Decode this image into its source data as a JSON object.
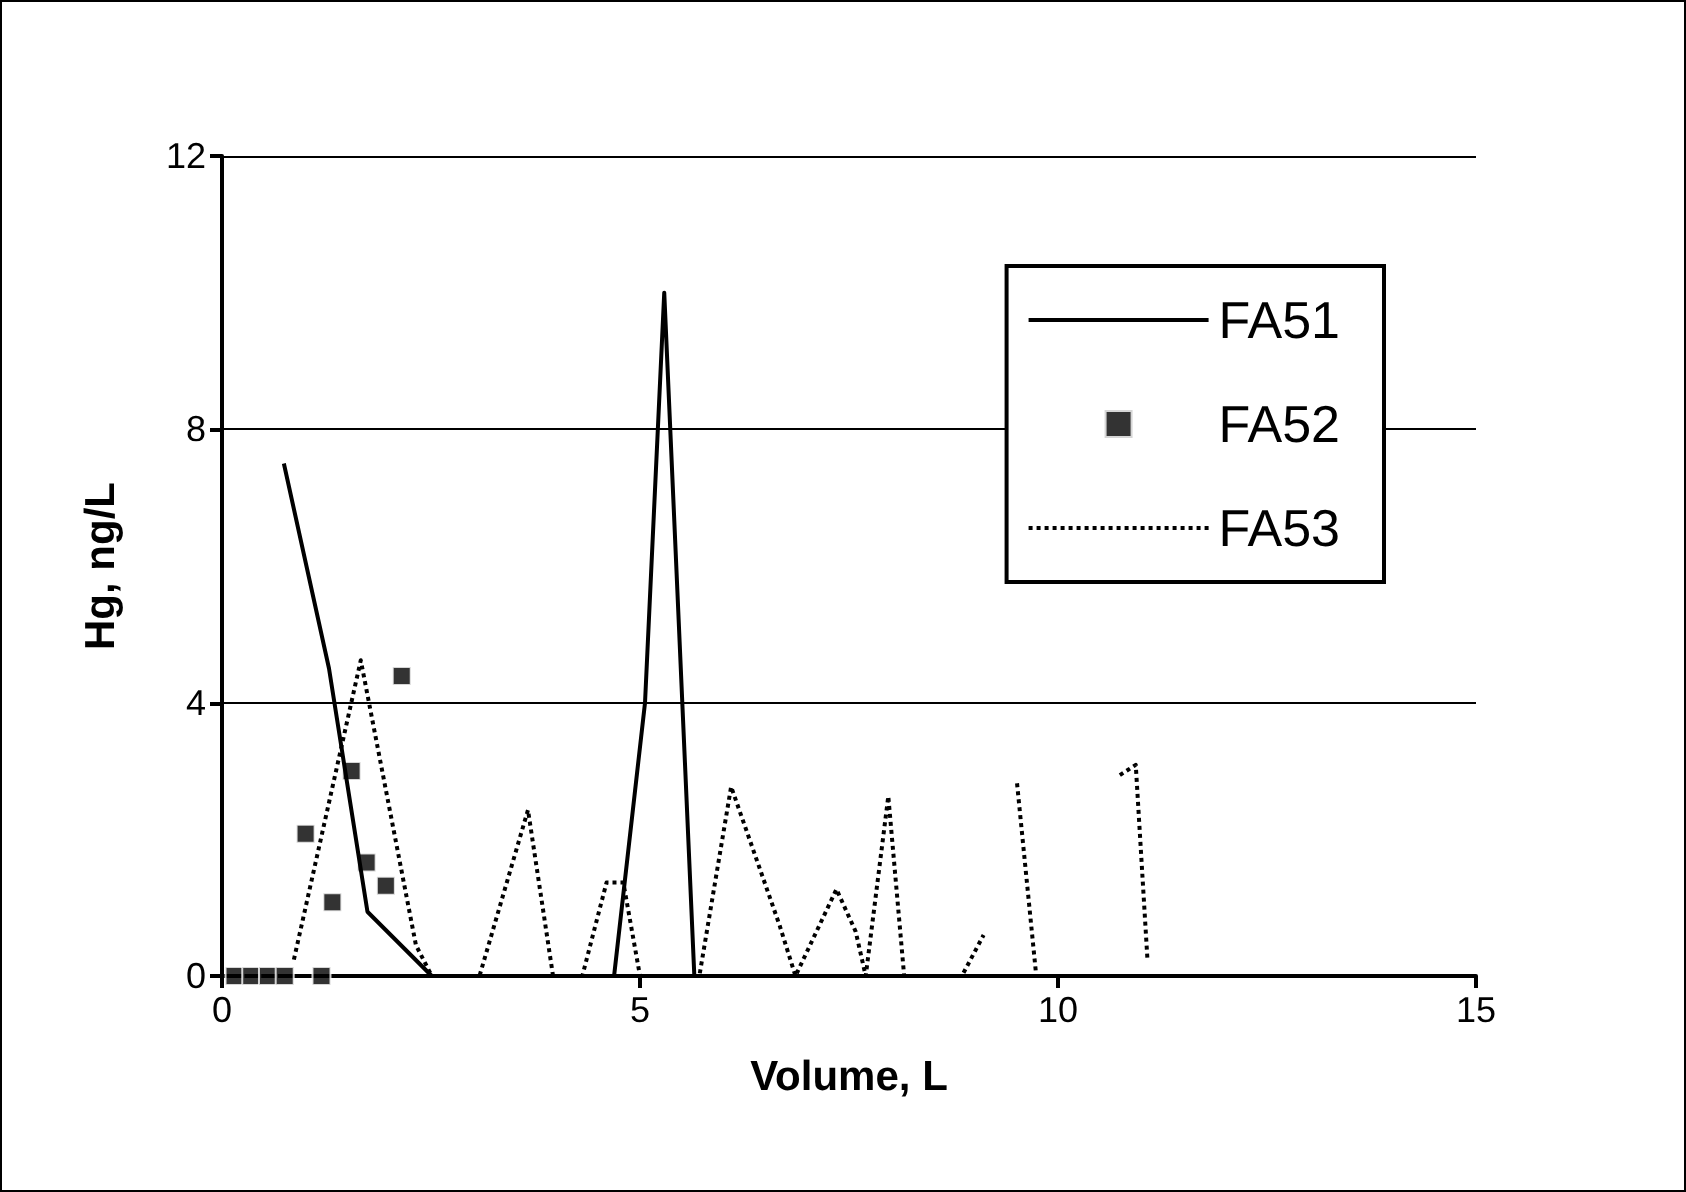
{
  "chart_data": {
    "type": "line",
    "xlabel": "Volume, L",
    "ylabel": "Hg, ng/L",
    "xlim": [
      0,
      15
    ],
    "xticks": [
      0,
      5,
      10,
      15
    ],
    "ylim": [
      0,
      12
    ],
    "yticks": [
      0,
      4,
      8,
      12
    ],
    "grid": "y",
    "legend": "top right",
    "series": [
      {
        "name": "FA51",
        "color": "#000000",
        "marker": "none",
        "line_style": "solid",
        "x": [
          0.74,
          1.28,
          1.74,
          2.51,
          4.69,
          5.06,
          5.29,
          5.65
        ],
        "values": [
          7.5,
          4.5,
          0.94,
          0,
          0,
          4.0,
          10.0,
          0
        ]
      },
      {
        "name": "FA52",
        "type": "scatter",
        "color": "#000000",
        "marker": "square",
        "x": [
          0.15,
          0.35,
          0.55,
          0.75,
          1.0,
          1.19,
          1.32,
          1.55,
          1.73,
          1.96,
          2.15
        ],
        "values": [
          0,
          0,
          0,
          0,
          2.08,
          0,
          1.08,
          3.0,
          1.66,
          1.32,
          4.39
        ]
      },
      {
        "name": "FA53",
        "color": "#000000",
        "marker": "none",
        "line_style": "dotted",
        "x": [
          0.86,
          1.66,
          2.32,
          2.51,
          3.08,
          3.66,
          3.96,
          4.31,
          4.6,
          4.8,
          5.0,
          5.71,
          6.09,
          6.67,
          6.86,
          7.35,
          7.58,
          7.7,
          7.97,
          8.16,
          8.85,
          9.11,
          9.3,
          9.51,
          9.74,
          10.2,
          10.74,
          10.93,
          11.07
        ],
        "values": [
          0.24,
          4.62,
          0.45,
          0,
          0,
          2.43,
          0,
          0,
          1.37,
          1.37,
          0,
          0,
          2.77,
          0.74,
          0,
          1.27,
          0.65,
          0,
          2.63,
          0,
          0,
          0.6,
          null,
          2.82,
          0,
          null,
          2.94,
          3.09,
          0.24
        ]
      }
    ]
  }
}
